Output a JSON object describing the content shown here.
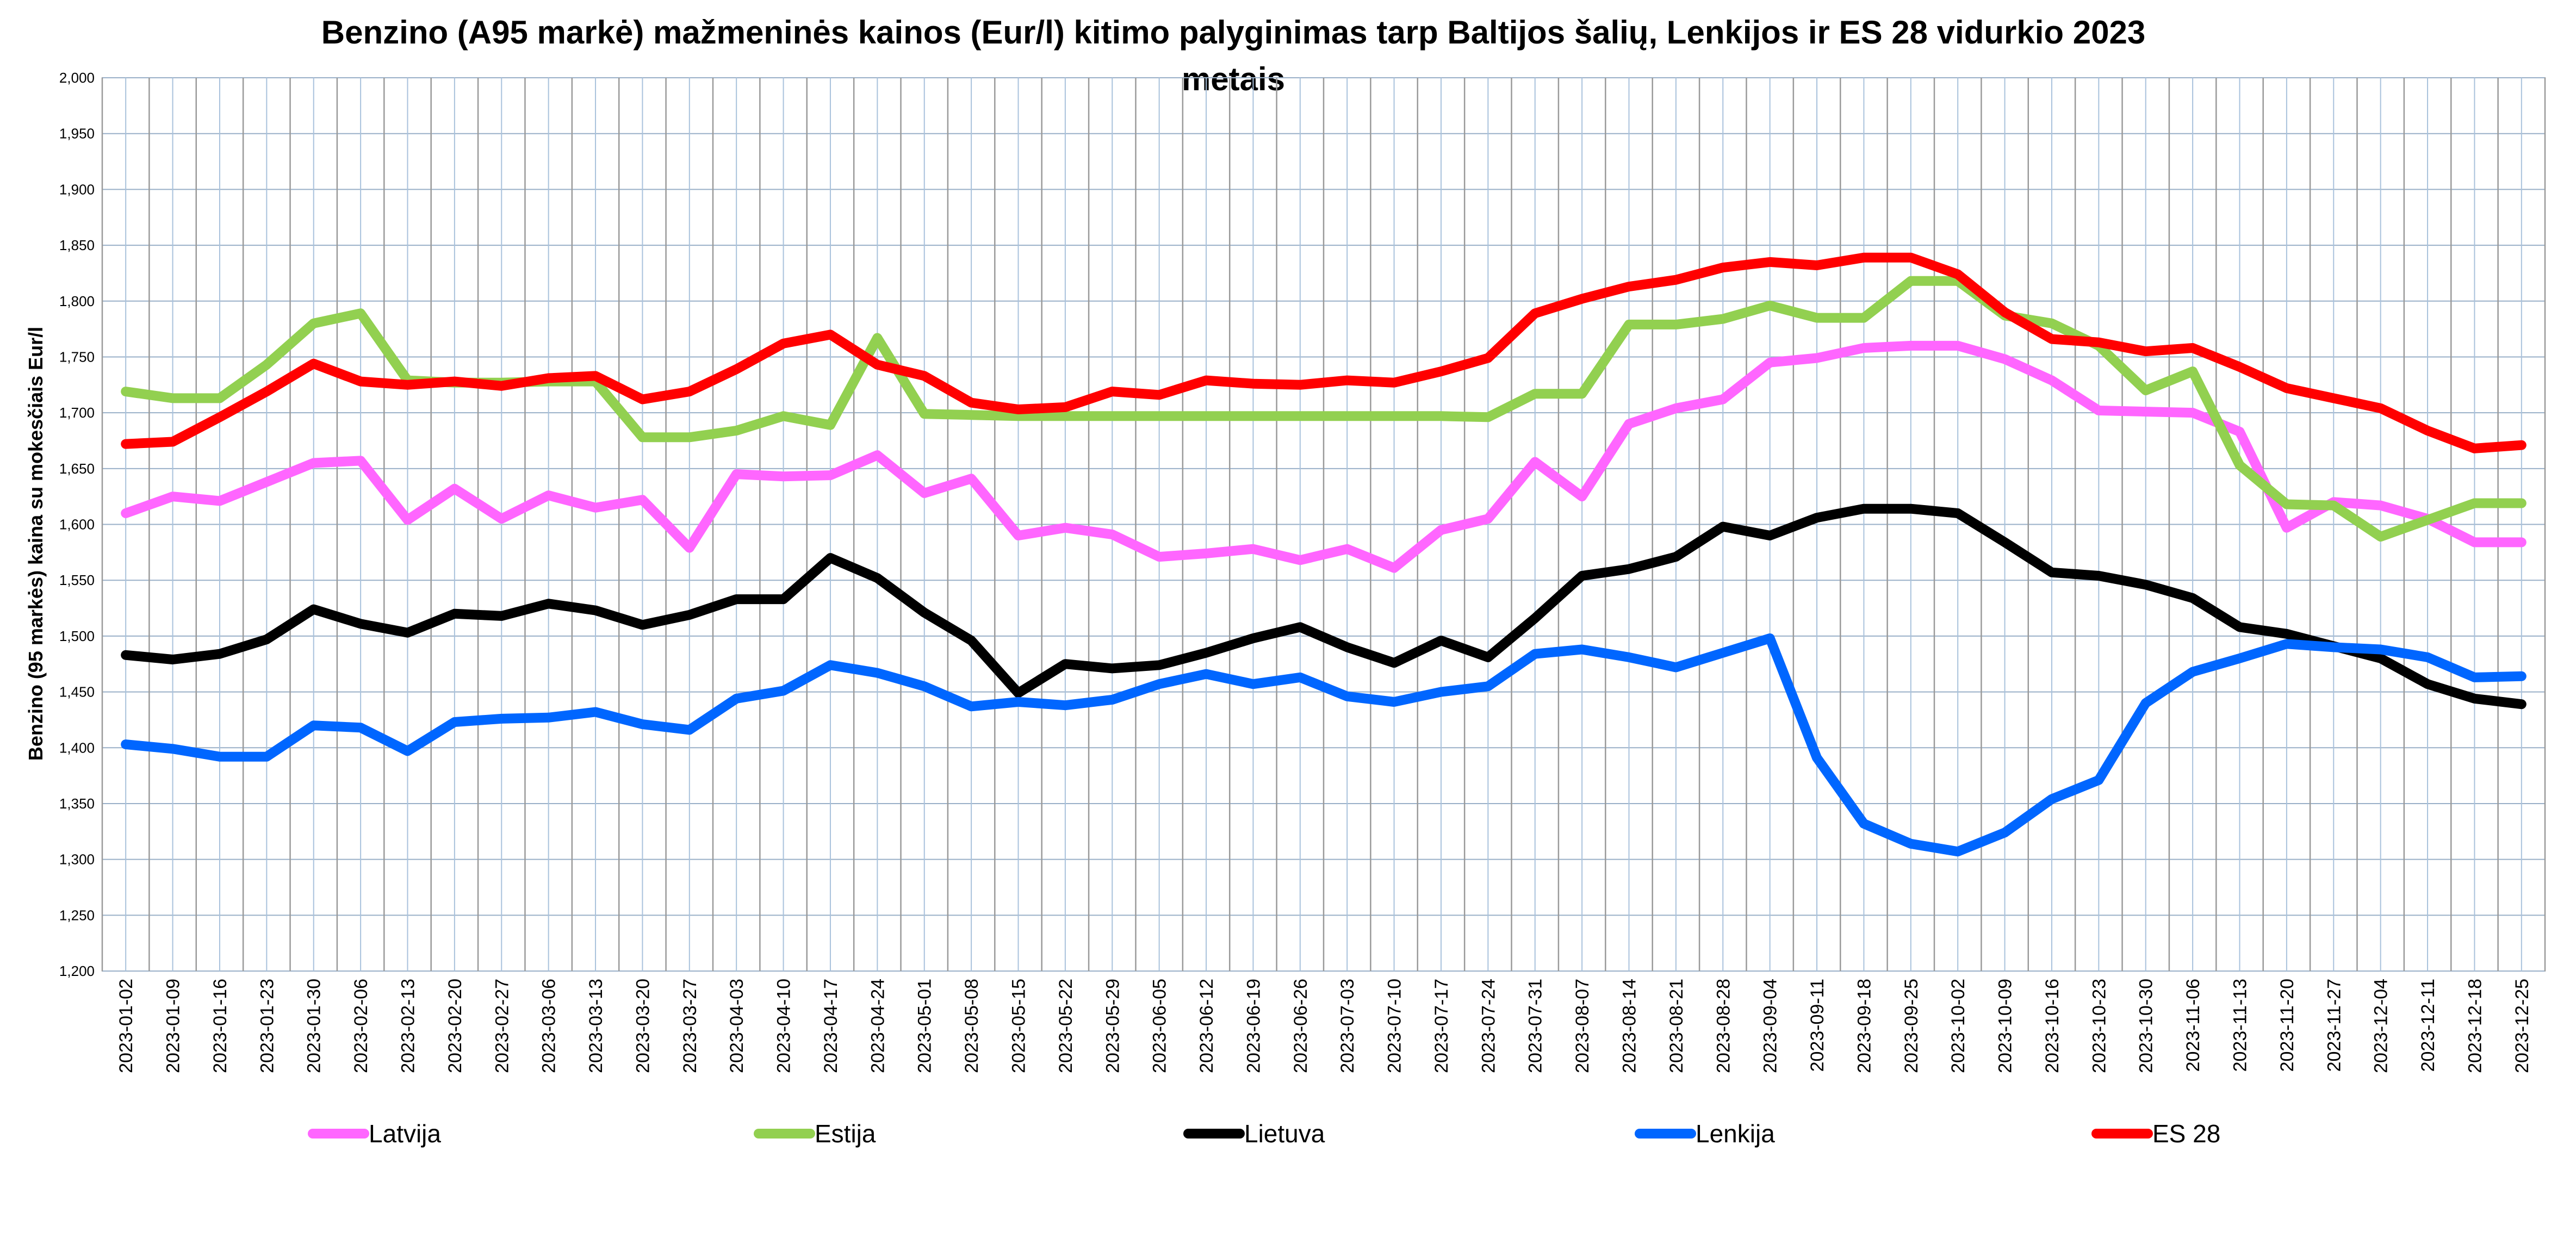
{
  "chart_data": {
    "type": "line",
    "title": "Benzino (A95 markė) mažmeninės kainos (Eur/l) kitimo palyginimas tarp Baltijos šalių, Lenkijos ir ES 28 vidurkio 2023 metais",
    "title_lines": [
      "Benzino (A95 markė) mažmeninės kainos (Eur/l) kitimo palyginimas tarp Baltijos šalių, Lenkijos ir ES 28 vidurkio 2023",
      "metais"
    ],
    "xlabel": "",
    "ylabel": "Benzino (95 markės) kaina su mokesčiais Eur/l",
    "ylim": [
      1.2,
      2.0
    ],
    "yticks": [
      "1,200",
      "1,250",
      "1,300",
      "1,350",
      "1,400",
      "1,450",
      "1,500",
      "1,550",
      "1,600",
      "1,650",
      "1,700",
      "1,750",
      "1,800",
      "1,850",
      "1,900",
      "1,950",
      "2,000"
    ],
    "grid": true,
    "legend": "bottom",
    "x": [
      "2023-01-02",
      "2023-01-09",
      "2023-01-16",
      "2023-01-23",
      "2023-01-30",
      "2023-02-06",
      "2023-02-13",
      "2023-02-20",
      "2023-02-27",
      "2023-03-06",
      "2023-03-13",
      "2023-03-20",
      "2023-03-27",
      "2023-04-03",
      "2023-04-10",
      "2023-04-17",
      "2023-04-24",
      "2023-05-01",
      "2023-05-08",
      "2023-05-15",
      "2023-05-22",
      "2023-05-29",
      "2023-06-05",
      "2023-06-12",
      "2023-06-19",
      "2023-06-26",
      "2023-07-03",
      "2023-07-10",
      "2023-07-17",
      "2023-07-24",
      "2023-07-31",
      "2023-08-07",
      "2023-08-14",
      "2023-08-21",
      "2023-08-28",
      "2023-09-04",
      "2023-09-11",
      "2023-09-18",
      "2023-09-25",
      "2023-10-02",
      "2023-10-09",
      "2023-10-16",
      "2023-10-23",
      "2023-10-30",
      "2023-11-06",
      "2023-11-13",
      "2023-11-20",
      "2023-11-27",
      "2023-12-04",
      "2023-12-11",
      "2023-12-18",
      "2023-12-25"
    ],
    "series": [
      {
        "name": "Latvija",
        "color": "#FF66FF",
        "values": [
          1.61,
          1.625,
          1.621,
          1.638,
          1.655,
          1.657,
          1.604,
          1.632,
          1.605,
          1.626,
          1.615,
          1.622,
          1.579,
          1.645,
          1.643,
          1.644,
          1.662,
          1.628,
          1.641,
          1.59,
          1.597,
          1.591,
          1.571,
          1.574,
          1.578,
          1.568,
          1.578,
          1.561,
          1.595,
          1.605,
          1.656,
          1.625,
          1.69,
          1.704,
          1.712,
          1.745,
          1.749,
          1.758,
          1.76,
          1.76,
          1.748,
          1.729,
          1.702,
          1.701,
          1.7,
          1.683,
          1.597,
          1.62,
          1.617,
          1.605,
          1.584,
          1.584
        ]
      },
      {
        "name": "Estija",
        "color": "#92D050",
        "values": [
          1.719,
          1.713,
          1.713,
          1.743,
          1.78,
          1.789,
          1.729,
          1.727,
          1.727,
          1.728,
          1.728,
          1.678,
          1.678,
          1.684,
          1.697,
          1.689,
          1.767,
          1.699,
          1.698,
          1.697,
          1.697,
          1.697,
          1.697,
          1.697,
          1.697,
          1.697,
          1.697,
          1.697,
          1.697,
          1.696,
          1.717,
          1.717,
          1.779,
          1.779,
          1.784,
          1.796,
          1.785,
          1.785,
          1.818,
          1.818,
          1.787,
          1.78,
          1.76,
          1.72,
          1.737,
          1.653,
          1.618,
          1.617,
          1.589,
          1.604,
          1.619,
          1.619
        ]
      },
      {
        "name": "Lietuva",
        "color": "#000000",
        "values": [
          1.483,
          1.479,
          1.484,
          1.497,
          1.524,
          1.511,
          1.503,
          1.52,
          1.518,
          1.529,
          1.523,
          1.51,
          1.519,
          1.533,
          1.533,
          1.57,
          1.552,
          1.521,
          1.496,
          1.449,
          1.475,
          1.471,
          1.474,
          1.485,
          1.498,
          1.508,
          1.49,
          1.476,
          1.496,
          1.481,
          1.516,
          1.554,
          1.56,
          1.571,
          1.598,
          1.59,
          1.606,
          1.614,
          1.614,
          1.61,
          1.584,
          1.557,
          1.554,
          1.546,
          1.534,
          1.508,
          1.502,
          1.491,
          1.48,
          1.457,
          1.444,
          1.439
        ]
      },
      {
        "name": "Lenkija",
        "color": "#0066FF",
        "values": [
          1.403,
          1.399,
          1.392,
          1.392,
          1.42,
          1.418,
          1.397,
          1.423,
          1.426,
          1.427,
          1.432,
          1.421,
          1.416,
          1.444,
          1.451,
          1.474,
          1.467,
          1.455,
          1.437,
          1.441,
          1.438,
          1.443,
          1.457,
          1.466,
          1.457,
          1.463,
          1.446,
          1.441,
          1.45,
          1.455,
          1.484,
          1.488,
          1.481,
          1.472,
          1.485,
          1.498,
          1.391,
          1.332,
          1.314,
          1.307,
          1.324,
          1.354,
          1.371,
          1.44,
          1.468,
          1.48,
          1.493,
          1.49,
          1.488,
          1.481,
          1.463,
          1.464
        ]
      },
      {
        "name": "ES 28",
        "color": "#FF0000",
        "values": [
          1.672,
          1.674,
          1.696,
          1.719,
          1.744,
          1.728,
          1.725,
          1.728,
          1.724,
          1.731,
          1.733,
          1.712,
          1.719,
          1.739,
          1.762,
          1.77,
          1.743,
          1.733,
          1.709,
          1.703,
          1.705,
          1.719,
          1.716,
          1.729,
          1.726,
          1.725,
          1.729,
          1.727,
          1.737,
          1.749,
          1.789,
          1.802,
          1.813,
          1.819,
          1.83,
          1.835,
          1.832,
          1.839,
          1.839,
          1.824,
          1.79,
          1.766,
          1.763,
          1.755,
          1.758,
          1.741,
          1.722,
          1.713,
          1.704,
          1.684,
          1.668,
          1.671
        ]
      }
    ]
  }
}
